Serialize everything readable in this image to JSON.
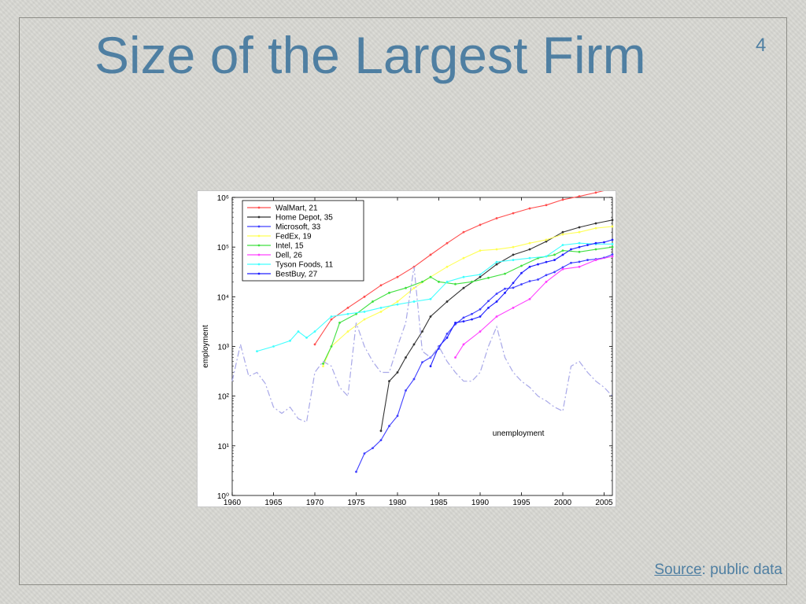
{
  "slide": {
    "title": "Size of the Largest Firm",
    "number": "4",
    "source_label": "Source",
    "source_rest": ": public data"
  },
  "chart_data": {
    "type": "line",
    "title": "",
    "xlabel": "",
    "ylabel": "employment",
    "xlim": [
      1960,
      2006
    ],
    "ylim": [
      1,
      1000000
    ],
    "yscale": "log",
    "xticks": [
      1960,
      1965,
      1970,
      1975,
      1980,
      1985,
      1990,
      1995,
      2000,
      2005
    ],
    "ytick_labels": [
      "10⁰",
      "10¹",
      "10²",
      "10³",
      "10⁴",
      "10⁵",
      "10⁶"
    ],
    "legend_position": "top-left",
    "annotation": "unemployment",
    "series": [
      {
        "name": "WalMart, 21",
        "color": "#ff4d4d",
        "x": [
          1970,
          1972,
          1974,
          1976,
          1978,
          1980,
          1982,
          1984,
          1986,
          1988,
          1990,
          1992,
          1994,
          1996,
          1998,
          2000,
          2002,
          2004,
          2006
        ],
        "y": [
          1100,
          3500,
          6000,
          10000,
          17000,
          25000,
          40000,
          70000,
          120000,
          200000,
          280000,
          380000,
          480000,
          600000,
          700000,
          900000,
          1050000,
          1250000,
          1500000
        ]
      },
      {
        "name": "Home Depot, 35",
        "color": "#333333",
        "x": [
          1978,
          1979,
          1980,
          1981,
          1982,
          1983,
          1984,
          1986,
          1988,
          1990,
          1992,
          1994,
          1996,
          1998,
          2000,
          2002,
          2004,
          2006
        ],
        "y": [
          20,
          200,
          300,
          600,
          1100,
          2000,
          4000,
          8000,
          15000,
          25000,
          45000,
          70000,
          90000,
          130000,
          200000,
          250000,
          300000,
          350000
        ]
      },
      {
        "name": "Microsoft, 33",
        "color": "#4040ff",
        "x": [
          1975,
          1976,
          1977,
          1978,
          1979,
          1980,
          1981,
          1982,
          1983,
          1984,
          1985,
          1986,
          1987,
          1988,
          1989,
          1990,
          1991,
          1992,
          1993,
          1994,
          1995,
          1996,
          1997,
          1998,
          1999,
          2000,
          2001,
          2002,
          2003,
          2004,
          2005,
          2006
        ],
        "y": [
          3,
          7,
          9,
          13,
          25,
          40,
          130,
          220,
          480,
          600,
          900,
          1800,
          2800,
          3800,
          4500,
          5600,
          8200,
          11500,
          14500,
          15200,
          17800,
          20600,
          22200,
          27300,
          31400,
          39100,
          48000,
          50500,
          55000,
          57000,
          61000,
          71000
        ]
      },
      {
        "name": "FedEx, 19",
        "color": "#ffff55",
        "x": [
          1971,
          1972,
          1974,
          1976,
          1978,
          1980,
          1982,
          1984,
          1986,
          1988,
          1990,
          1992,
          1994,
          1996,
          1998,
          2000,
          2002,
          2004,
          2006
        ],
        "y": [
          400,
          1000,
          2000,
          3500,
          5000,
          8000,
          15000,
          25000,
          40000,
          60000,
          85000,
          90000,
          100000,
          120000,
          140000,
          180000,
          200000,
          240000,
          260000
        ]
      },
      {
        "name": "Intel, 15",
        "color": "#40e040",
        "x": [
          1971,
          1972,
          1973,
          1975,
          1977,
          1979,
          1981,
          1983,
          1984,
          1985,
          1987,
          1989,
          1991,
          1993,
          1995,
          1997,
          1999,
          2000,
          2002,
          2004,
          2006
        ],
        "y": [
          450,
          1000,
          3000,
          4500,
          8000,
          12000,
          15000,
          20000,
          25000,
          20000,
          18000,
          20000,
          24000,
          29000,
          42000,
          60000,
          70000,
          85000,
          80000,
          90000,
          100000
        ]
      },
      {
        "name": "Dell, 26",
        "color": "#ff40ff",
        "x": [
          1987,
          1988,
          1990,
          1992,
          1994,
          1996,
          1998,
          2000,
          2002,
          2004,
          2006
        ],
        "y": [
          600,
          1100,
          2000,
          4000,
          6000,
          9000,
          20000,
          36000,
          40000,
          55000,
          65000
        ]
      },
      {
        "name": "Tyson Foods, 11",
        "color": "#40ffff",
        "x": [
          1963,
          1965,
          1967,
          1968,
          1969,
          1970,
          1972,
          1974,
          1976,
          1978,
          1980,
          1982,
          1984,
          1986,
          1988,
          1990,
          1992,
          1994,
          1996,
          1998,
          2000,
          2002,
          2004,
          2006
        ],
        "y": [
          800,
          1000,
          1300,
          2000,
          1500,
          2000,
          4000,
          4500,
          5000,
          6000,
          7000,
          8000,
          9000,
          20000,
          25000,
          28000,
          50000,
          55000,
          60000,
          65000,
          110000,
          120000,
          115000,
          115000
        ]
      },
      {
        "name": "BestBuy, 27",
        "color": "#2020ff",
        "x": [
          1984,
          1985,
          1986,
          1987,
          1988,
          1989,
          1990,
          1991,
          1992,
          1993,
          1994,
          1995,
          1996,
          1997,
          1998,
          1999,
          2000,
          2001,
          2002,
          2003,
          2004,
          2005,
          2006
        ],
        "y": [
          400,
          1000,
          1500,
          3000,
          3200,
          3500,
          4000,
          6000,
          8000,
          12000,
          19000,
          30000,
          40000,
          45000,
          50000,
          55000,
          70000,
          90000,
          100000,
          110000,
          120000,
          125000,
          140000
        ]
      },
      {
        "name": "unemployment",
        "color": "#a8a8e8",
        "dashed": true,
        "x": [
          1960,
          1961,
          1962,
          1963,
          1964,
          1965,
          1966,
          1967,
          1968,
          1969,
          1970,
          1971,
          1972,
          1973,
          1974,
          1975,
          1976,
          1977,
          1978,
          1979,
          1980,
          1981,
          1982,
          1983,
          1984,
          1985,
          1986,
          1987,
          1988,
          1989,
          1990,
          1991,
          1992,
          1993,
          1994,
          1995,
          1996,
          1997,
          1998,
          1999,
          2000,
          2001,
          2002,
          2003,
          2004,
          2005,
          2006
        ],
        "y": [
          200,
          1100,
          250,
          300,
          180,
          60,
          45,
          60,
          35,
          30,
          300,
          500,
          400,
          150,
          100,
          3000,
          1000,
          500,
          300,
          300,
          1000,
          3000,
          40000,
          800,
          600,
          1000,
          500,
          300,
          200,
          200,
          300,
          1000,
          2500,
          600,
          300,
          200,
          150,
          100,
          80,
          60,
          50,
          400,
          500,
          300,
          200,
          150,
          100
        ]
      }
    ]
  }
}
